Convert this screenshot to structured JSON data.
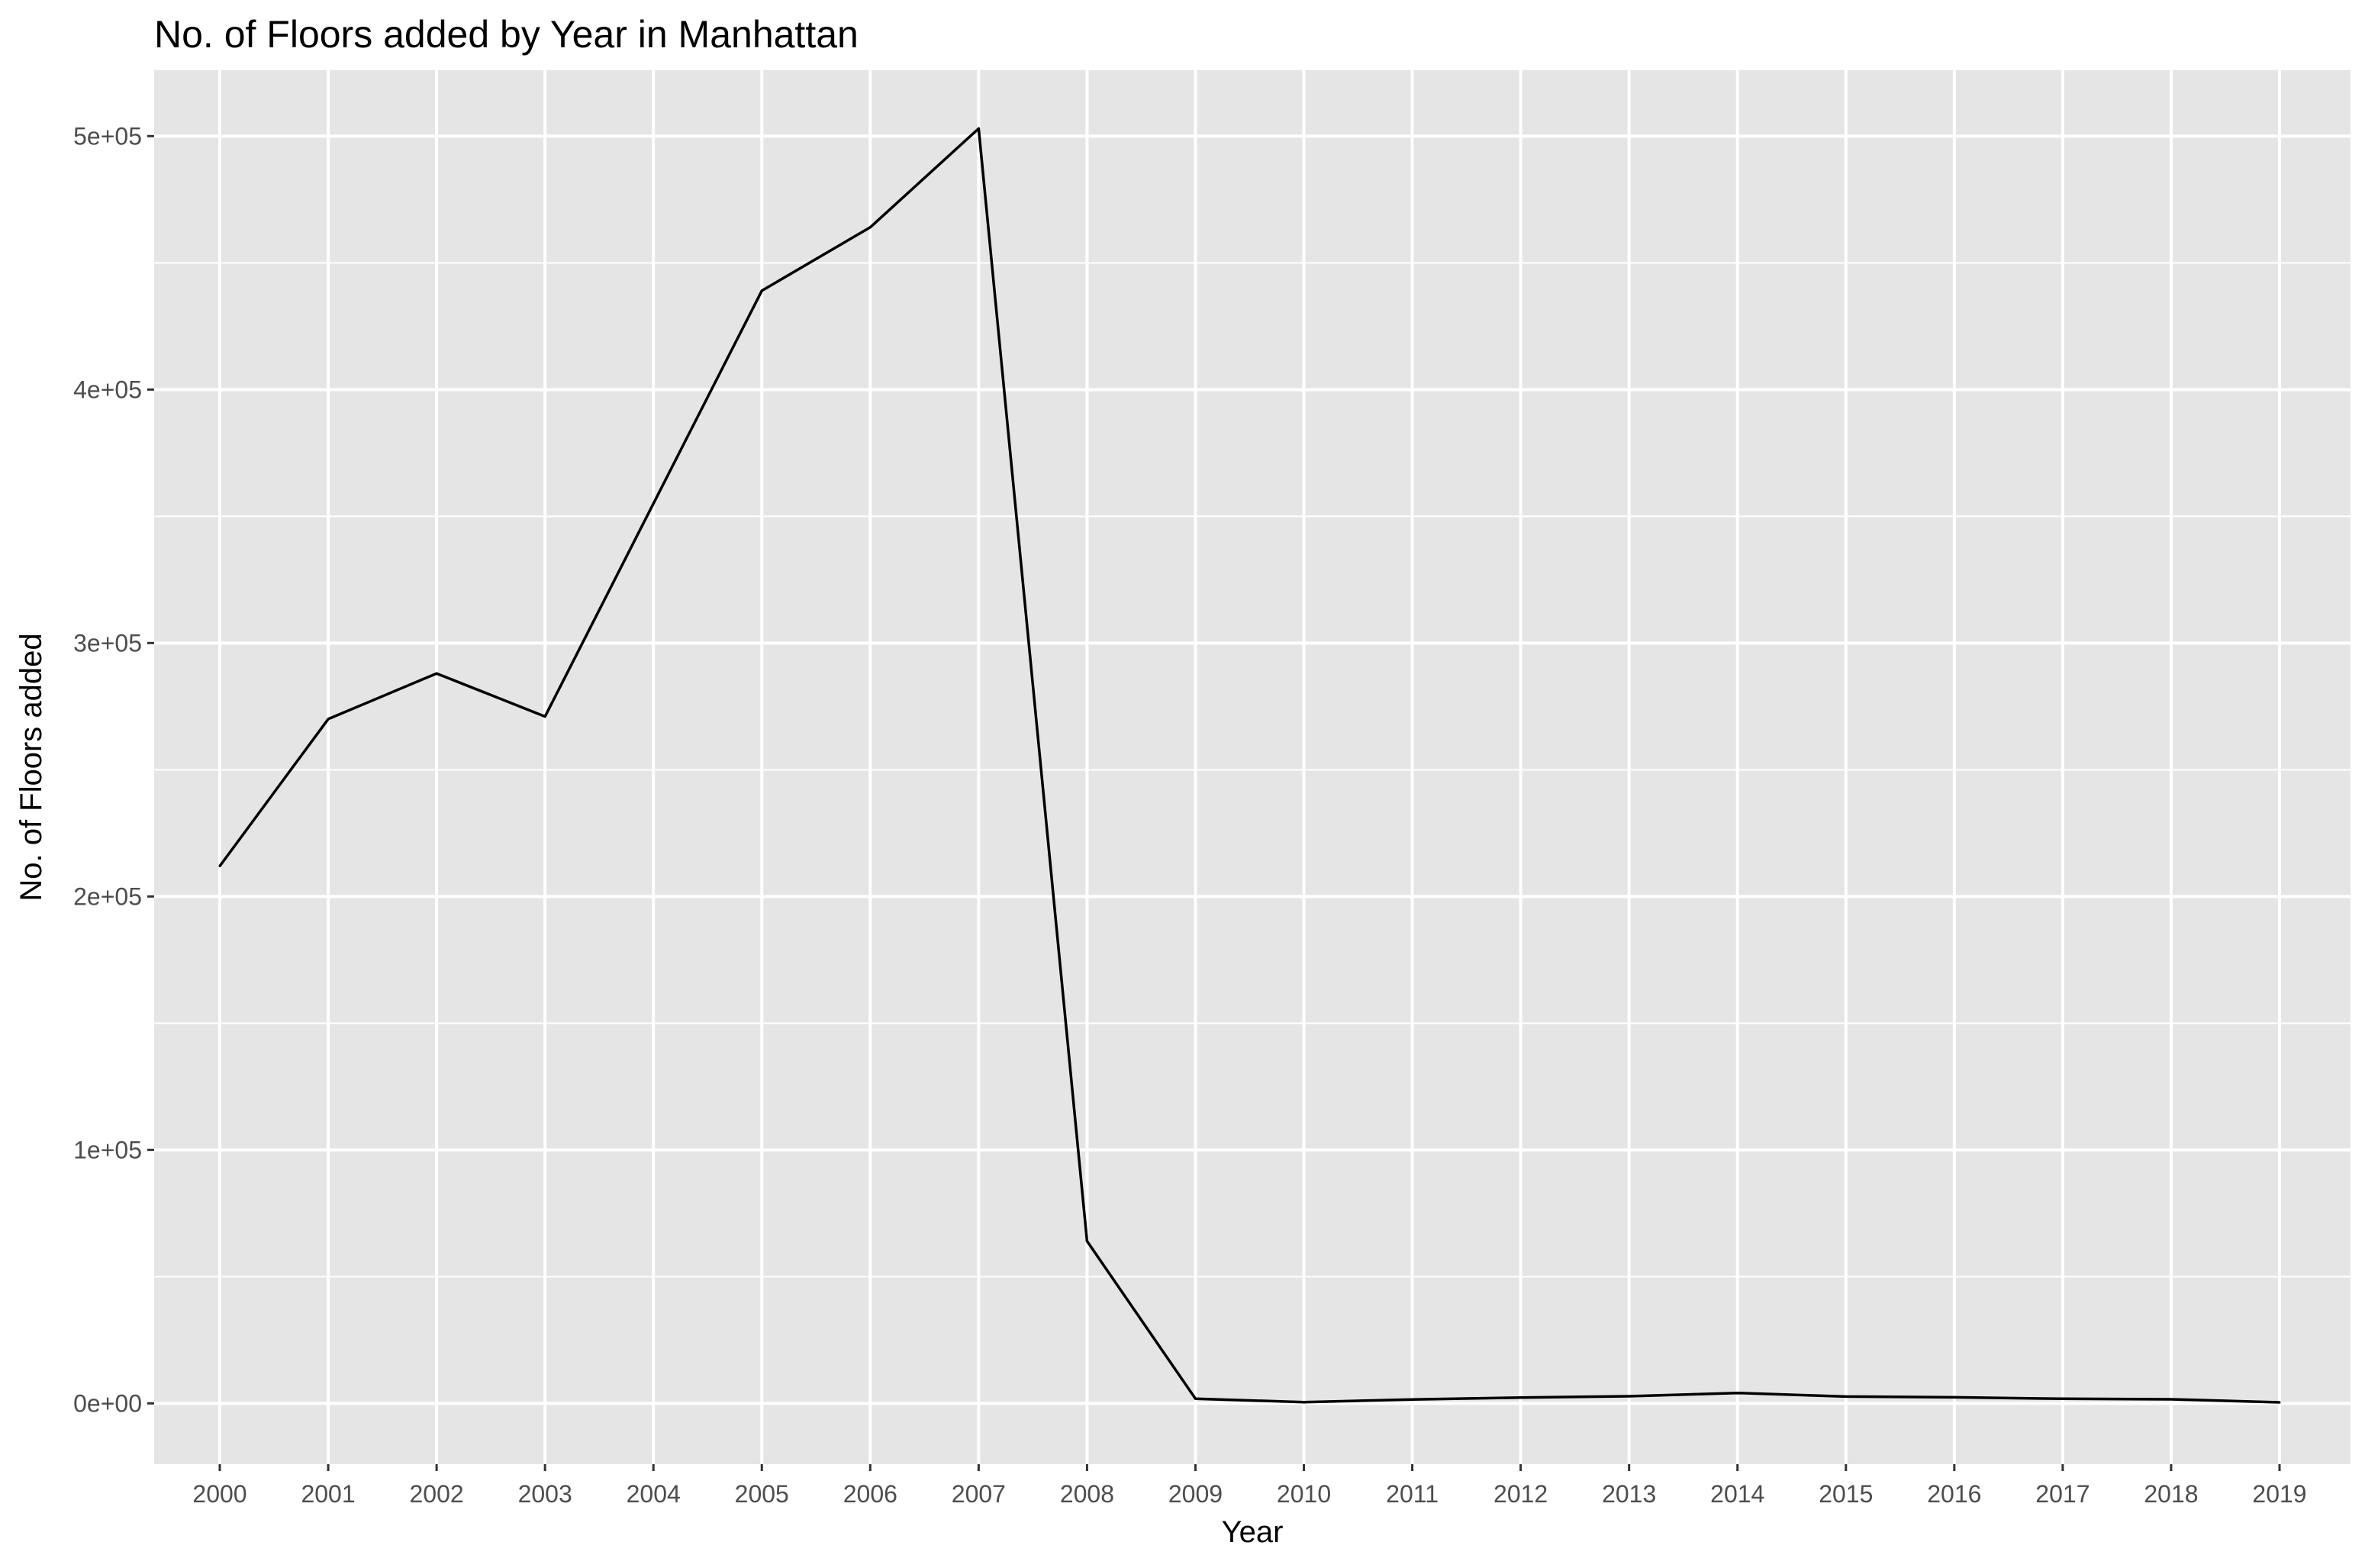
{
  "chart_data": {
    "type": "line",
    "title": "No. of Floors added by Year in Manhattan",
    "xlabel": "Year",
    "ylabel": "No. of Floors added",
    "x": [
      "2000",
      "2001",
      "2002",
      "2003",
      "2004",
      "2005",
      "2006",
      "2007",
      "2008",
      "2009",
      "2010",
      "2011",
      "2012",
      "2013",
      "2014",
      "2015",
      "2016",
      "2017",
      "2018",
      "2019"
    ],
    "series": [
      {
        "values": [
          212000,
          270000,
          288000,
          271000,
          355000,
          439000,
          464000,
          503000,
          64000,
          1800,
          500,
          1500,
          2300,
          2800,
          4100,
          2700,
          2400,
          1800,
          1600,
          400
        ]
      }
    ],
    "yticks": [
      {
        "value": 0,
        "label": "0e+00"
      },
      {
        "value": 100000,
        "label": "1e+05"
      },
      {
        "value": 200000,
        "label": "2e+05"
      },
      {
        "value": 300000,
        "label": "3e+05"
      },
      {
        "value": 400000,
        "label": "4e+05"
      },
      {
        "value": 500000,
        "label": "5e+05"
      }
    ],
    "ylim": [
      -24000,
      526000
    ],
    "grid": true,
    "colors": {
      "panel": "#e5e5e5",
      "grid": "#ffffff",
      "line": "#000000",
      "tick_text": "#4d4d4d",
      "tick_mark": "#333333"
    }
  }
}
